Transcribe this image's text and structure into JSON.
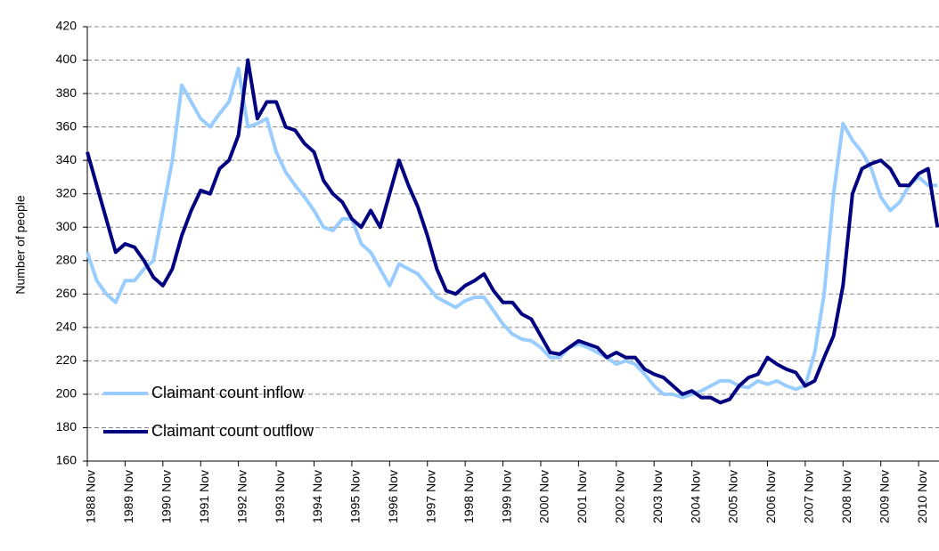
{
  "chart_data": {
    "type": "line",
    "y_label": "Number of people",
    "x": [
      1988.83,
      1989.08,
      1989.33,
      1989.58,
      1989.83,
      1990.08,
      1990.33,
      1990.58,
      1990.83,
      1991.08,
      1991.33,
      1991.58,
      1991.83,
      1992.08,
      1992.33,
      1992.58,
      1992.83,
      1993.08,
      1993.33,
      1993.58,
      1993.83,
      1994.08,
      1994.33,
      1994.58,
      1994.83,
      1995.08,
      1995.33,
      1995.58,
      1995.83,
      1996.08,
      1996.33,
      1996.58,
      1996.83,
      1997.08,
      1997.33,
      1997.58,
      1997.83,
      1998.08,
      1998.33,
      1998.58,
      1998.83,
      1999.08,
      1999.33,
      1999.58,
      1999.83,
      2000.08,
      2000.33,
      2000.58,
      2000.83,
      2001.08,
      2001.33,
      2001.58,
      2001.83,
      2002.08,
      2002.33,
      2002.58,
      2002.83,
      2003.08,
      2003.33,
      2003.58,
      2003.83,
      2004.08,
      2004.33,
      2004.58,
      2004.83,
      2005.08,
      2005.33,
      2005.58,
      2005.83,
      2006.08,
      2006.33,
      2006.58,
      2006.83,
      2007.08,
      2007.33,
      2007.58,
      2007.83,
      2008.08,
      2008.33,
      2008.58,
      2008.83,
      2009.08,
      2009.33,
      2009.58,
      2009.83,
      2010.08,
      2010.33,
      2010.58,
      2010.83,
      2011.08,
      2011.33
    ],
    "series": [
      {
        "name": "Claimant count inflow",
        "color": "#99ccff",
        "values": [
          285,
          268,
          260,
          255,
          268,
          268,
          275,
          280,
          310,
          340,
          385,
          375,
          365,
          360,
          368,
          375,
          395,
          360,
          362,
          365,
          345,
          333,
          325,
          318,
          310,
          300,
          298,
          305,
          305,
          290,
          285,
          275,
          265,
          278,
          275,
          272,
          265,
          258,
          255,
          252,
          256,
          258,
          258,
          250,
          242,
          236,
          233,
          232,
          228,
          222,
          222,
          228,
          230,
          228,
          225,
          222,
          218,
          220,
          218,
          212,
          205,
          200,
          200,
          198,
          200,
          202,
          205,
          208,
          208,
          205,
          204,
          208,
          206,
          208,
          205,
          203,
          205,
          225,
          260,
          320,
          362,
          352,
          345,
          335,
          318,
          310,
          315,
          325,
          330,
          325,
          325
        ]
      },
      {
        "name": "Claimant count outflow",
        "color": "#000080",
        "values": [
          345,
          325,
          305,
          285,
          290,
          288,
          280,
          270,
          265,
          275,
          295,
          310,
          322,
          320,
          335,
          340,
          355,
          400,
          365,
          375,
          375,
          360,
          358,
          350,
          345,
          328,
          320,
          315,
          305,
          300,
          310,
          300,
          320,
          340,
          325,
          312,
          295,
          275,
          262,
          260,
          265,
          268,
          272,
          262,
          255,
          255,
          248,
          245,
          235,
          225,
          224,
          228,
          232,
          230,
          228,
          222,
          225,
          222,
          222,
          215,
          212,
          210,
          205,
          200,
          202,
          198,
          198,
          195,
          197,
          205,
          210,
          212,
          222,
          218,
          215,
          213,
          205,
          208,
          222,
          235,
          265,
          320,
          335,
          338,
          340,
          335,
          325,
          325,
          332,
          335,
          300
        ]
      }
    ],
    "xlim": [
      1988.83,
      2011.37
    ],
    "xticks": [
      {
        "value": 1988.83,
        "label": "1988 Nov"
      },
      {
        "value": 1989.83,
        "label": "1989 Nov"
      },
      {
        "value": 1990.83,
        "label": "1990 Nov"
      },
      {
        "value": 1991.83,
        "label": "1991 Nov"
      },
      {
        "value": 1992.83,
        "label": "1992 Nov"
      },
      {
        "value": 1993.83,
        "label": "1993 Nov"
      },
      {
        "value": 1994.83,
        "label": "1994 Nov"
      },
      {
        "value": 1995.83,
        "label": "1995 Nov"
      },
      {
        "value": 1996.83,
        "label": "1996 Nov"
      },
      {
        "value": 1997.83,
        "label": "1997 Nov"
      },
      {
        "value": 1998.83,
        "label": "1998 Nov"
      },
      {
        "value": 1999.83,
        "label": "1999 Nov"
      },
      {
        "value": 2000.83,
        "label": "2000 Nov"
      },
      {
        "value": 2001.83,
        "label": "2001 Nov"
      },
      {
        "value": 2002.83,
        "label": "2002 Nov"
      },
      {
        "value": 2003.83,
        "label": "2003 Nov"
      },
      {
        "value": 2004.83,
        "label": "2004 Nov"
      },
      {
        "value": 2005.83,
        "label": "2005 Nov"
      },
      {
        "value": 2006.83,
        "label": "2006 Nov"
      },
      {
        "value": 2007.83,
        "label": "2007 Nov"
      },
      {
        "value": 2008.83,
        "label": "2008 Nov"
      },
      {
        "value": 2009.83,
        "label": "2009 Nov"
      },
      {
        "value": 2010.83,
        "label": "2010 Nov"
      }
    ],
    "ylim": [
      160,
      420
    ],
    "yticks": [
      160,
      180,
      200,
      220,
      240,
      260,
      280,
      300,
      320,
      340,
      360,
      380,
      400,
      420
    ],
    "grid": true,
    "legend": "lower left"
  }
}
